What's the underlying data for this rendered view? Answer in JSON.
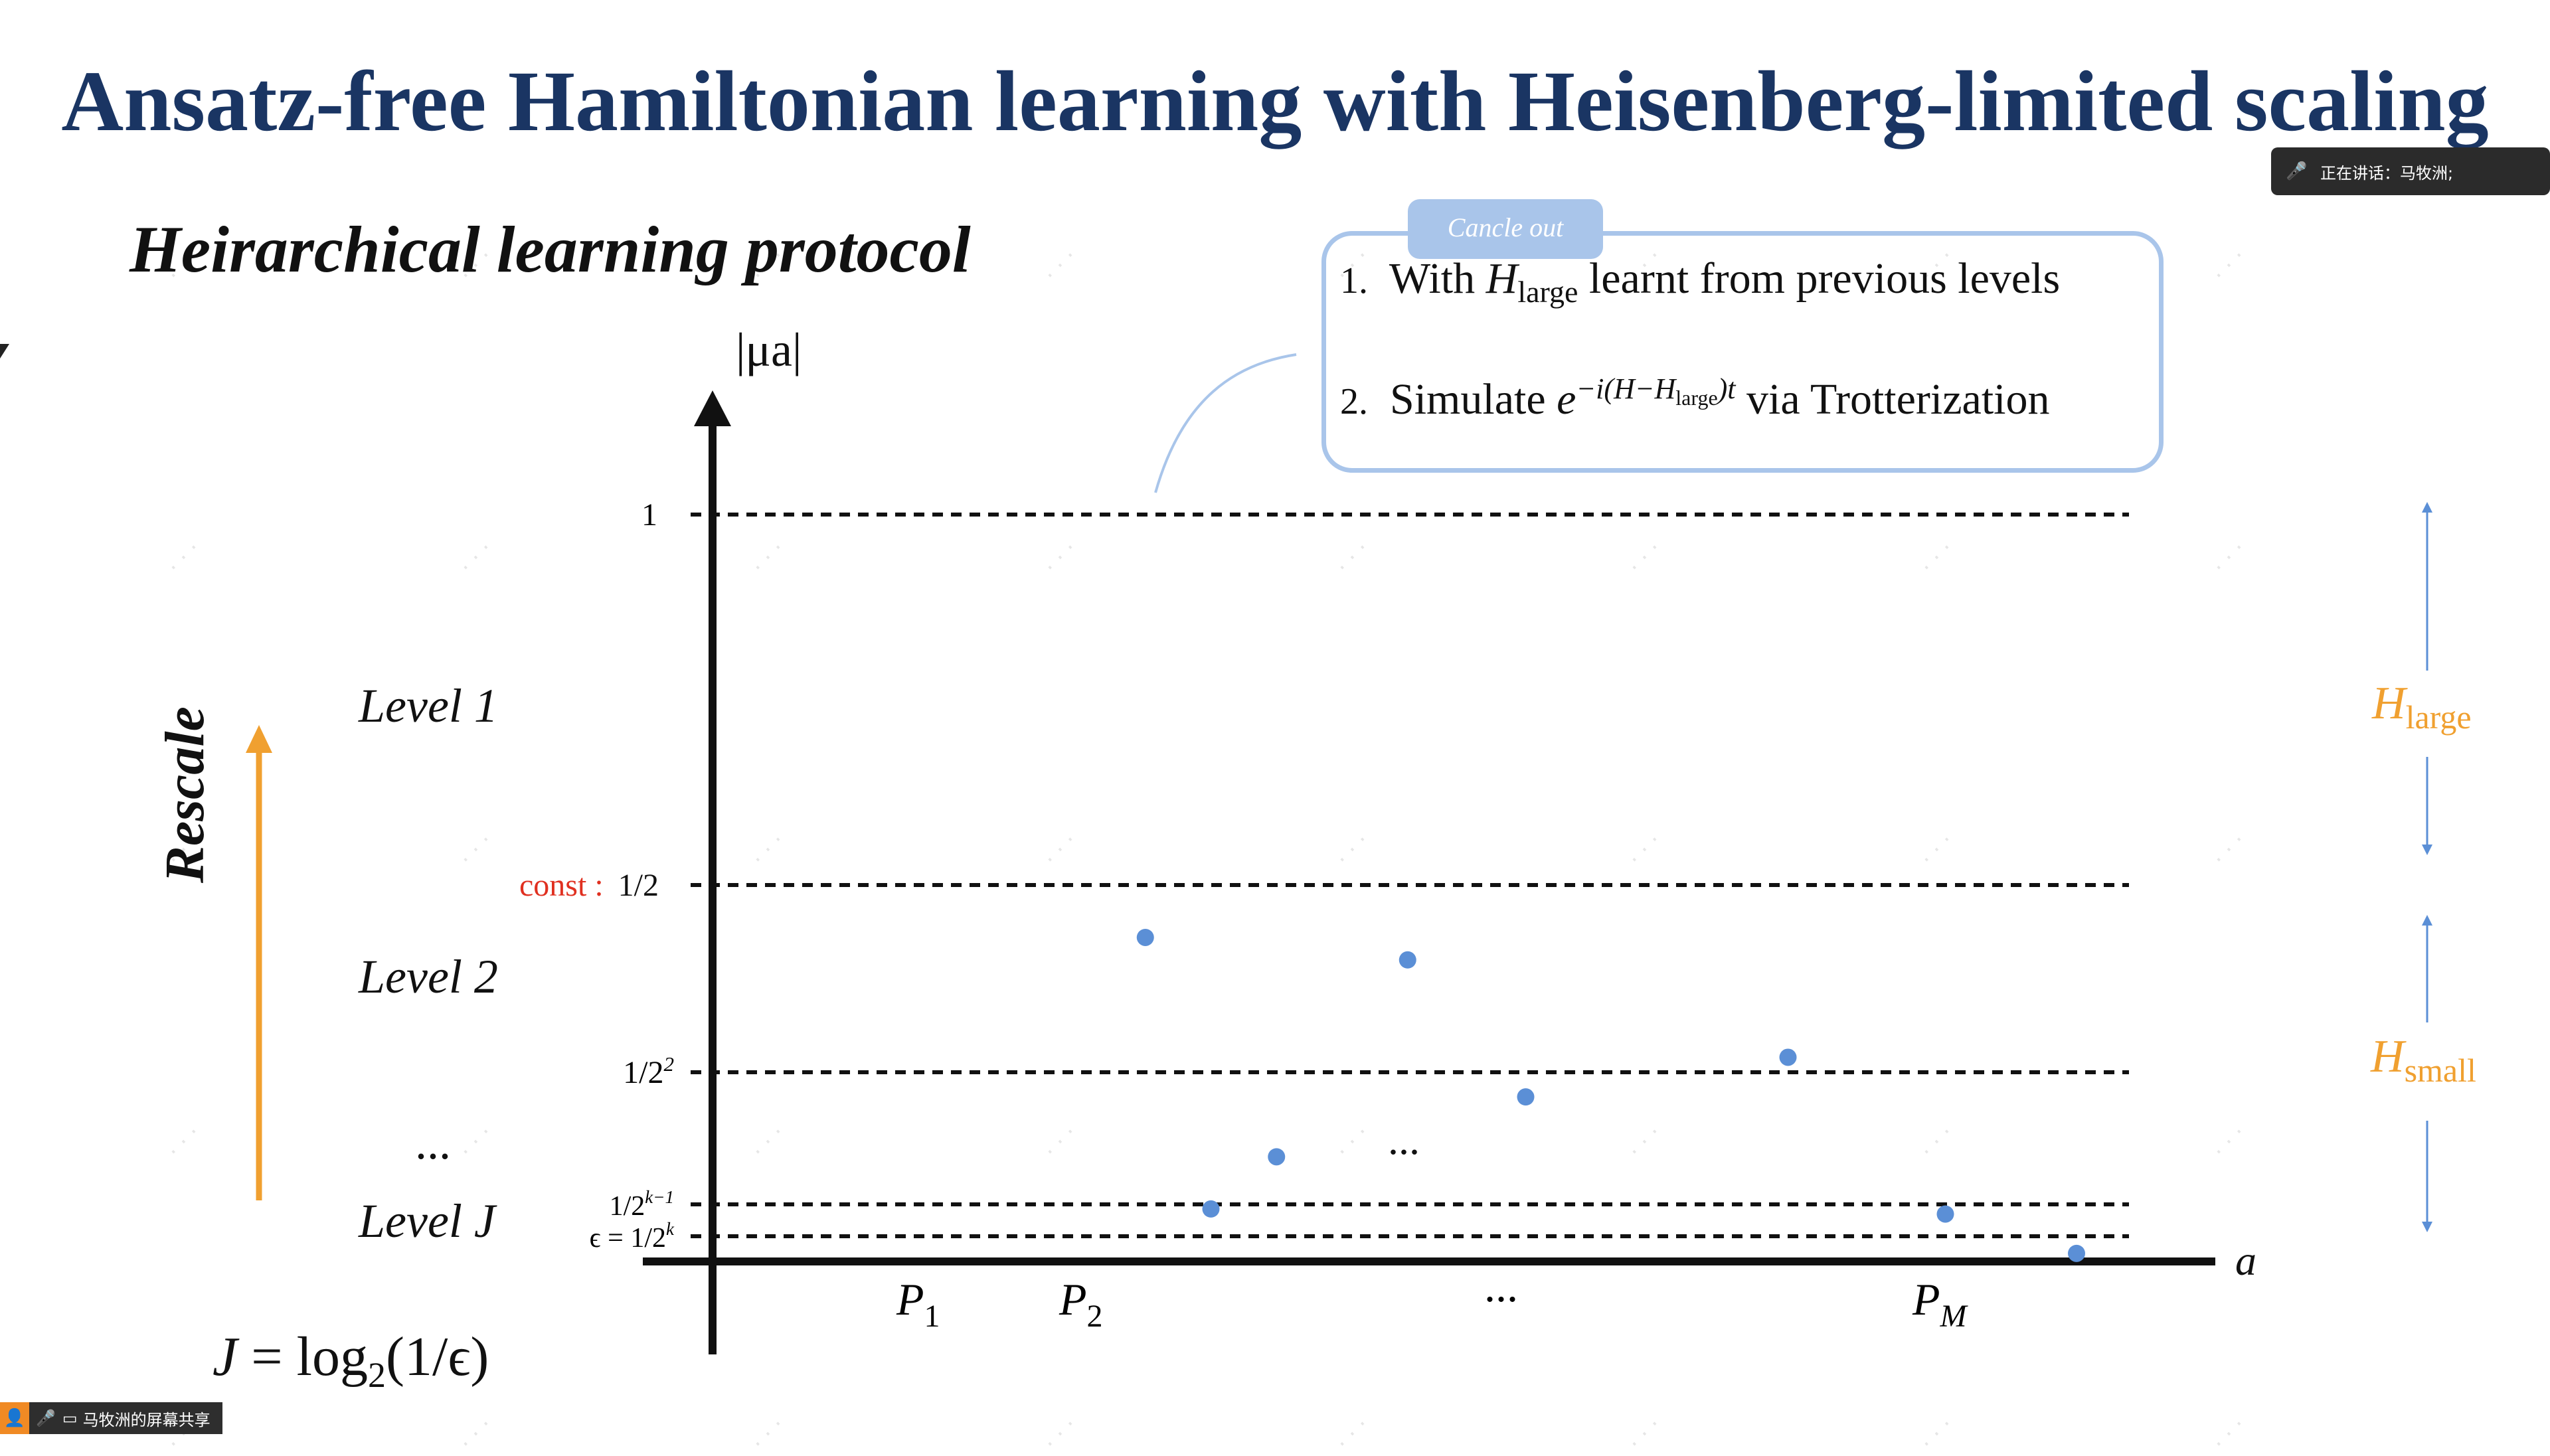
{
  "title": "Ansatz-free Hamiltonian learning with Heisenberg-limited scaling",
  "subtitle": "Heirarchical learning protocol",
  "speaker_bar": {
    "label": "正在讲话：马牧洲;"
  },
  "share_bar": {
    "label": "马牧洲的屏幕共享"
  },
  "callout": {
    "badge": "Cancle out",
    "item1": {
      "num": "1.",
      "pre": "With ",
      "H": "H",
      "sub": "large",
      "post": " learnt from previous levels"
    },
    "item2": {
      "num": "2.",
      "pre": "Simulate ",
      "e": "e",
      "sup_a": "−i(H−H",
      "sup_sub": "large",
      "sup_b": ")t",
      "post": " via Trotterization"
    }
  },
  "levels": {
    "l1": "Level 1",
    "l2": "Level 2",
    "dots": "...",
    "lj": "Level J"
  },
  "rescale": "Rescale",
  "formula": {
    "j": "J",
    "eq": " = log",
    "sub": "2",
    "rest": "(1/ϵ)"
  },
  "colors": {
    "title": "#1a3563",
    "accent_orange": "#f0a030",
    "point_blue": "#5b8fd6",
    "callout_border": "#a9c5ea",
    "const_red": "#e03020"
  },
  "chart_data": {
    "type": "scatter",
    "title": "",
    "ylabel": "|μa|",
    "xlabel": "a",
    "x_ticks": [
      "P1",
      "P2",
      "...",
      "PM"
    ],
    "y_ticks": [
      {
        "label": "1",
        "value": 1
      },
      {
        "label": "const :",
        "label2": "1/2",
        "value": 0.5
      },
      {
        "label": "1/2",
        "sup": "2",
        "value": 0.25
      },
      {
        "label": "1/2",
        "sup": "k−1",
        "value": 0.0625
      },
      {
        "label": "ϵ = 1/2",
        "sup": "k",
        "value": 0.03125
      }
    ],
    "middle_dots": "...",
    "points": [
      {
        "x": 2.55,
        "y": 0.43
      },
      {
        "x": 3.55,
        "y": 0.4
      },
      {
        "x": 5.0,
        "y": 0.27
      },
      {
        "x": 4.0,
        "y": 0.215
      },
      {
        "x": 3.05,
        "y": 0.13
      },
      {
        "x": 2.8,
        "y": 0.058
      },
      {
        "x": 5.6,
        "y": 0.053
      },
      {
        "x": 6.1,
        "y": 0.01
      }
    ],
    "right_labels": [
      {
        "H": "H",
        "sub": "large"
      },
      {
        "H": "H",
        "sub": "small"
      }
    ]
  }
}
